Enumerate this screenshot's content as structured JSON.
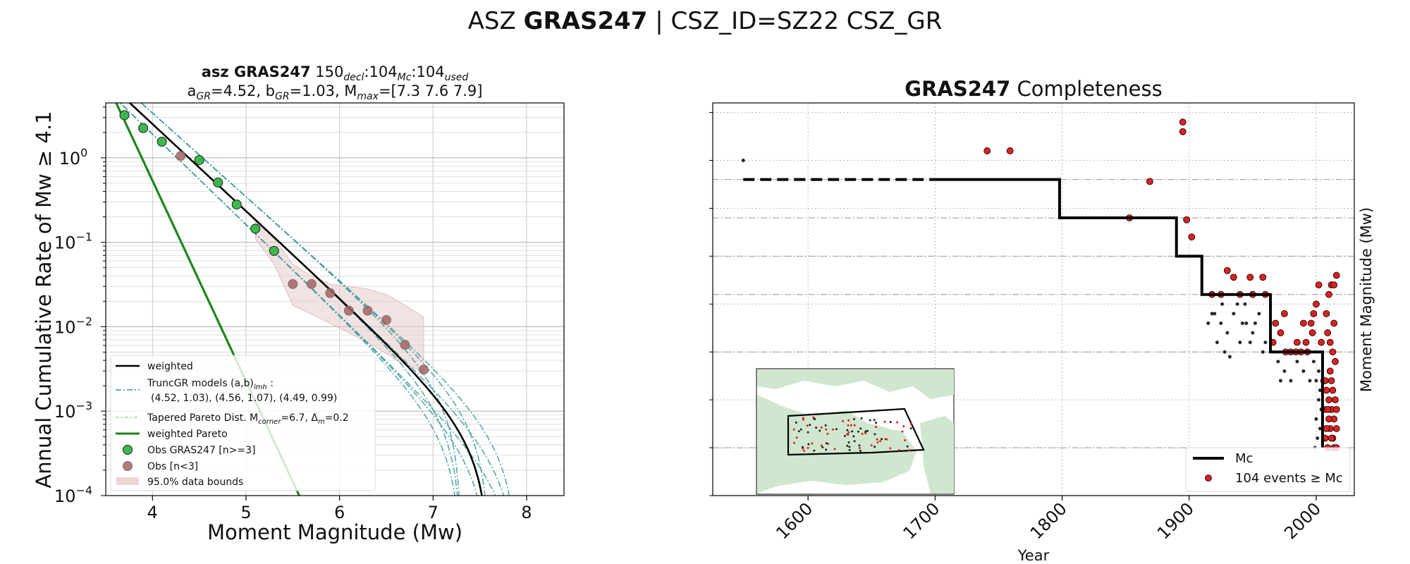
{
  "figure": {
    "suptitle_prefix": "ASZ ",
    "suptitle_bold": "GRAS247",
    "suptitle_suffix": " | CSZ_ID=SZ22 CSZ_GR"
  },
  "colors": {
    "green_obs": "#3cb84a",
    "brown_obs": "#a86262",
    "teal_models": "#3a9a9a",
    "light_green_pareto": "#98d898",
    "pareto": "#1e861e",
    "bounds": "#e8cccc",
    "red_events": "#e02020",
    "land": "#cfe7cf"
  },
  "chart_data": [
    {
      "type": "line",
      "title_bold": "asz GRAS247",
      "title_rest": "150decl:104Mc:104used",
      "title_line1_parts": {
        "n_decl": "150",
        "sub_decl": "decl",
        "n_mc": "104",
        "sub_mc": "Mc",
        "n_used": "104",
        "sub_used": "used"
      },
      "title_line2_parts": {
        "a": "=4.52,",
        "b": "=1.03,",
        "mmax": "=[7.3 7.6 7.9]"
      },
      "xlabel": "Moment Magnitude (Mw)",
      "ylabel": "Annual Cumulative Rate of Mw  ≥  4.1",
      "xlim": [
        3.5,
        8.4
      ],
      "ylim_log10": [
        -4,
        0.65
      ],
      "y_scale": "log",
      "x_ticks": [
        4,
        5,
        6,
        7,
        8
      ],
      "y_ticks": [
        {
          "base": "10",
          "exp": "0"
        },
        {
          "base": "10",
          "exp": "−1"
        },
        {
          "base": "10",
          "exp": "−2"
        },
        {
          "base": "10",
          "exp": "−3"
        },
        {
          "base": "10",
          "exp": "−4"
        }
      ],
      "grid": true,
      "legend_position": "lower-left",
      "legend": [
        {
          "label": "weighted"
        },
        {
          "label_pre": "TruncGR models (a,b)",
          "label_sub": "lmh",
          "label_post": " :",
          "label2": "(4.52, 1.03), (4.56, 1.07), (4.49, 0.99)"
        },
        {
          "label_pre": "Tapered Pareto Dist. M",
          "label_sub": "corner",
          "label_post": "=6.7, Δ",
          "label_sub2": "m",
          "label_post2": "=0.2"
        },
        {
          "label": "weighted Pareto"
        },
        {
          "label": "Obs GRAS247 [n>=3]"
        },
        {
          "label": "Obs [n<3]"
        },
        {
          "label": "95.0% data bounds"
        }
      ],
      "obs_green": {
        "x": [
          3.7,
          3.9,
          4.1,
          4.5,
          4.7,
          4.9,
          5.1,
          5.3
        ],
        "y": [
          3.2,
          2.25,
          1.55,
          0.94,
          0.51,
          0.28,
          0.145,
          0.079
        ]
      },
      "obs_brown": {
        "x": [
          4.3,
          5.5,
          5.7,
          5.9,
          6.1,
          6.3,
          6.5,
          6.7,
          6.9
        ],
        "y": [
          1.05,
          0.032,
          0.032,
          0.025,
          0.0155,
          0.0155,
          0.012,
          0.0061,
          0.0031
        ]
      },
      "bounds": {
        "x": [
          5.1,
          5.3,
          5.5,
          5.7,
          5.9,
          6.1,
          6.3,
          6.5,
          6.7,
          6.9
        ],
        "upper": [
          0.18,
          0.11,
          0.055,
          0.04,
          0.032,
          0.03,
          0.028,
          0.024,
          0.018,
          0.013
        ],
        "lower": [
          0.11,
          0.055,
          0.018,
          0.014,
          0.011,
          0.0085,
          0.0065,
          0.0048,
          0.0035,
          0.003
        ]
      },
      "gr_models": [
        {
          "a": 4.52,
          "b": 1.03,
          "mmax": 7.6,
          "role": "weighted"
        },
        {
          "a": 4.52,
          "b": 1.03,
          "mmax": 7.3
        },
        {
          "a": 4.52,
          "b": 1.03,
          "mmax": 7.9
        },
        {
          "a": 4.56,
          "b": 1.07,
          "mmax": 7.3
        },
        {
          "a": 4.56,
          "b": 1.07,
          "mmax": 7.6
        },
        {
          "a": 4.56,
          "b": 1.07,
          "mmax": 7.9
        },
        {
          "a": 4.49,
          "b": 0.99,
          "mmax": 7.3
        },
        {
          "a": 4.49,
          "b": 0.99,
          "mmax": 7.6
        },
        {
          "a": 4.49,
          "b": 0.99,
          "mmax": 7.9
        }
      ],
      "pareto": {
        "a": 4.52,
        "b": 1.03,
        "mcorner_set": [
          6.5,
          6.6,
          6.7,
          6.8,
          6.9
        ],
        "mcorner_weighted": 6.7
      }
    },
    {
      "type": "scatter",
      "title_bold": "GRAS247",
      "title_rest": " Completeness",
      "xlabel": "Year",
      "ylabel": "Moment Magnitude (Mw)",
      "xlim": [
        1525,
        2030
      ],
      "ylim": [
        3.0,
        7.1
      ],
      "x_ticks": [
        1600,
        1700,
        1800,
        1900,
        2000
      ],
      "y_ticks": [
        "3.0",
        "3.5",
        "4.0",
        "4.5",
        "5.0",
        "5.5",
        "6.0",
        "6.5",
        "7.0"
      ],
      "mc_ticks": [
        "3.5",
        "4.5",
        "5.1",
        "5.5",
        "5.9",
        "6.3"
      ],
      "grid": true,
      "legend_position": "lower-right",
      "legend": [
        {
          "label": "Mc"
        },
        {
          "label": "104 events  ≥  Mc"
        }
      ],
      "mc_steps": [
        {
          "year": 1549,
          "mc": 6.3
        },
        {
          "year": 1700,
          "mc": 6.3
        },
        {
          "year": 1798,
          "mc": 5.9
        },
        {
          "year": 1890,
          "mc": 5.5
        },
        {
          "year": 1910,
          "mc": 5.1
        },
        {
          "year": 1964,
          "mc": 4.5
        },
        {
          "year": 2005,
          "mc": 3.5
        },
        {
          "year": 2005,
          "mc": 3.5
        }
      ],
      "red_events": [
        [
          1741,
          6.6
        ],
        [
          1759,
          6.6
        ],
        [
          1869,
          6.28
        ],
        [
          1853,
          5.9
        ],
        [
          1895,
          6.9
        ],
        [
          1895,
          6.8
        ],
        [
          1898,
          5.88
        ],
        [
          1902,
          5.7
        ],
        [
          1930,
          5.35
        ],
        [
          1935,
          5.28
        ],
        [
          1925,
          5.1
        ],
        [
          1948,
          5.28
        ],
        [
          1958,
          5.28
        ],
        [
          1940,
          5.1
        ],
        [
          1950,
          5.1
        ],
        [
          1960,
          5.1
        ],
        [
          1918,
          5.1
        ],
        [
          1968,
          4.8
        ],
        [
          1972,
          4.7
        ],
        [
          1976,
          4.5
        ],
        [
          1966,
          4.6
        ],
        [
          1980,
          4.5
        ],
        [
          1984,
          4.5
        ],
        [
          1975,
          4.9
        ],
        [
          1985,
          4.6
        ],
        [
          1988,
          4.5
        ],
        [
          1992,
          4.6
        ],
        [
          1996,
          4.8
        ],
        [
          1990,
          4.8
        ],
        [
          1998,
          4.9
        ],
        [
          2000,
          5.0
        ],
        [
          2002,
          5.2
        ],
        [
          2004,
          4.6
        ],
        [
          1993,
          4.5
        ],
        [
          1997,
          4.7
        ],
        [
          2008,
          4.9
        ],
        [
          2010,
          5.1
        ],
        [
          2012,
          5.2
        ],
        [
          2014,
          4.8
        ],
        [
          2016,
          5.3
        ],
        [
          2014,
          5.2
        ],
        [
          2009,
          4.7
        ],
        [
          2011,
          4.6
        ],
        [
          2013,
          4.5
        ],
        [
          2006,
          4.2
        ],
        [
          2008,
          4.1
        ],
        [
          2010,
          4.0
        ],
        [
          2012,
          3.9
        ],
        [
          2014,
          3.8
        ],
        [
          2016,
          3.7
        ],
        [
          2007,
          3.6
        ],
        [
          2009,
          3.5
        ],
        [
          2011,
          3.7
        ],
        [
          2013,
          3.6
        ],
        [
          2015,
          4.0
        ],
        [
          2010,
          3.8
        ],
        [
          2012,
          4.2
        ],
        [
          2014,
          3.5
        ],
        [
          2016,
          3.9
        ],
        [
          2008,
          3.7
        ],
        [
          2006,
          3.9
        ],
        [
          2015,
          4.4
        ],
        [
          2011,
          4.3
        ],
        [
          2013,
          4.1
        ],
        [
          2009,
          3.9
        ],
        [
          2007,
          4.2
        ],
        [
          2016,
          3.5
        ],
        [
          2012,
          3.6
        ]
      ],
      "black_events": [
        [
          1549,
          6.5
        ],
        [
          1920,
          4.9
        ],
        [
          1925,
          4.8
        ],
        [
          1930,
          4.7
        ],
        [
          1935,
          4.9
        ],
        [
          1940,
          4.6
        ],
        [
          1945,
          4.8
        ],
        [
          1922,
          4.6
        ],
        [
          1928,
          4.5
        ],
        [
          1938,
          5.0
        ],
        [
          1950,
          4.7
        ],
        [
          1955,
          4.9
        ],
        [
          1932,
          4.45
        ],
        [
          1942,
          4.8
        ],
        [
          1948,
          4.6
        ],
        [
          1960,
          4.6
        ],
        [
          1944,
          5.0
        ],
        [
          1926,
          5.0
        ],
        [
          1958,
          4.5
        ],
        [
          1915,
          4.8
        ],
        [
          1918,
          4.9
        ],
        [
          1952,
          4.8
        ],
        [
          1970,
          4.4
        ],
        [
          1975,
          4.3
        ],
        [
          1980,
          4.2
        ],
        [
          1985,
          4.4
        ],
        [
          1990,
          4.3
        ],
        [
          1995,
          4.2
        ],
        [
          1998,
          4.4
        ],
        [
          2002,
          4.3
        ],
        [
          1972,
          4.2
        ],
        [
          2000,
          3.8
        ],
        [
          2003,
          3.7
        ],
        [
          2001,
          3.6
        ],
        [
          2004,
          3.9
        ],
        [
          2002,
          4.0
        ],
        [
          1999,
          3.5
        ],
        [
          2003,
          4.1
        ],
        [
          2000,
          4.2
        ]
      ]
    }
  ]
}
